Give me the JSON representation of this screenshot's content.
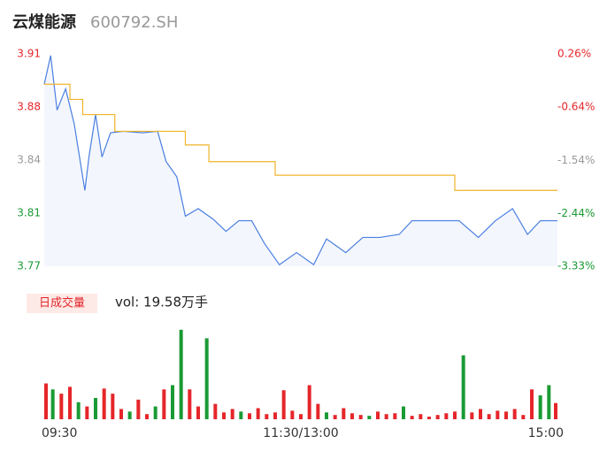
{
  "header": {
    "name": "云煤能源",
    "code": "600792.SH"
  },
  "chart_data": [
    {
      "type": "line",
      "xlim": [
        0,
        240
      ],
      "xticks": [
        {
          "value": 0,
          "label": "09:30"
        },
        {
          "value": 120,
          "label": "11:30/13:00"
        },
        {
          "value": 240,
          "label": "15:00"
        }
      ],
      "ylim": [
        3.77,
        3.91
      ],
      "yticks": [
        3.77,
        {
          "value": 3.805,
          "label": "3.81"
        },
        3.84,
        {
          "value": 3.875,
          "label": "3.88"
        },
        3.91
      ],
      "ytick_colors": [
        "#1a9a35",
        "#1a9a35",
        "#999999",
        "#e5262a",
        "#e5262a"
      ],
      "y2lim": [
        -3.33,
        0.26
      ],
      "y2ticks": [
        {
          "value": -3.33,
          "label": "-3.33%"
        },
        {
          "value": -2.44,
          "label": "-2.44%"
        },
        {
          "value": -1.54,
          "label": "-1.54%"
        },
        {
          "value": -0.64,
          "label": "-0.64%"
        },
        {
          "value": 0.26,
          "label": "0.26%"
        }
      ],
      "series": [
        {
          "color": "#4a7fe0",
          "x": [
            0,
            3,
            6,
            10,
            14,
            19,
            21,
            24,
            27,
            31,
            37,
            46,
            53,
            57,
            62,
            66,
            72,
            79,
            85,
            91,
            97,
            103,
            110,
            118,
            126,
            132,
            141,
            149,
            157,
            166,
            172,
            182,
            194,
            203,
            211,
            219,
            226,
            232,
            240
          ],
          "values": [
            3.89,
            3.909,
            3.873,
            3.887,
            3.864,
            3.82,
            3.843,
            3.87,
            3.842,
            3.858,
            3.859,
            3.858,
            3.859,
            3.839,
            3.829,
            3.803,
            3.808,
            3.801,
            3.793,
            3.8,
            3.8,
            3.785,
            3.771,
            3.779,
            3.771,
            3.788,
            3.779,
            3.789,
            3.789,
            3.791,
            3.8,
            3.8,
            3.8,
            3.789,
            3.8,
            3.808,
            3.791,
            3.8,
            3.8
          ]
        },
        {
          "color": "#f0b429",
          "x": [
            0,
            12,
            12,
            18,
            18,
            33,
            33,
            66,
            66,
            77,
            77,
            108,
            108,
            192,
            192,
            240
          ],
          "values": [
            3.89,
            3.89,
            3.88,
            3.88,
            3.87,
            3.87,
            3.859,
            3.859,
            3.85,
            3.85,
            3.839,
            3.839,
            3.83,
            3.83,
            3.82,
            3.82
          ]
        }
      ]
    },
    {
      "type": "bar",
      "legend": "日成交量",
      "subtitle": "vol: 19.58万手",
      "xlim": [
        0,
        240
      ],
      "ylim": [
        0,
        11000
      ],
      "x": [
        0,
        4,
        8,
        12,
        16,
        20,
        24,
        28,
        32,
        36,
        40,
        44,
        48,
        52,
        56,
        60,
        64,
        68,
        72,
        76,
        80,
        84,
        88,
        92,
        96,
        100,
        104,
        108,
        112,
        116,
        120,
        124,
        128,
        132,
        136,
        140,
        144,
        148,
        152,
        156,
        160,
        164,
        168,
        172,
        176,
        180,
        184,
        188,
        192,
        196,
        200,
        204,
        208,
        212,
        216,
        220,
        224,
        228,
        232,
        236,
        240
      ],
      "values": [
        4200,
        3500,
        3000,
        3800,
        2000,
        1500,
        2500,
        3600,
        3000,
        1200,
        900,
        2300,
        600,
        1500,
        3500,
        4000,
        10500,
        3500,
        1500,
        9500,
        1800,
        800,
        1200,
        900,
        700,
        1300,
        600,
        800,
        3400,
        1000,
        600,
        4000,
        1800,
        800,
        500,
        1300,
        700,
        500,
        400,
        900,
        600,
        700,
        1500,
        400,
        600,
        300,
        500,
        700,
        900,
        7500,
        800,
        1200,
        600,
        1000,
        900,
        1200,
        500,
        3500,
        2800,
        4000,
        1900
      ],
      "colors": [
        "#e5262a",
        "#1a9a35",
        "#e5262a",
        "#e5262a",
        "#1a9a35",
        "#e5262a",
        "#1a9a35",
        "#e5262a",
        "#e5262a",
        "#e5262a",
        "#1a9a35",
        "#e5262a",
        "#e5262a",
        "#1a9a35",
        "#e5262a",
        "#1a9a35",
        "#1a9a35",
        "#e5262a",
        "#e5262a",
        "#1a9a35",
        "#e5262a",
        "#e5262a",
        "#e5262a",
        "#1a9a35",
        "#e5262a",
        "#e5262a",
        "#e5262a",
        "#e5262a",
        "#e5262a",
        "#e5262a",
        "#e5262a",
        "#e5262a",
        "#e5262a",
        "#1a9a35",
        "#e5262a",
        "#e5262a",
        "#e5262a",
        "#e5262a",
        "#1a9a35",
        "#e5262a",
        "#e5262a",
        "#e5262a",
        "#1a9a35",
        "#e5262a",
        "#e5262a",
        "#e5262a",
        "#e5262a",
        "#e5262a",
        "#e5262a",
        "#1a9a35",
        "#e5262a",
        "#e5262a",
        "#e5262a",
        "#e5262a",
        "#e5262a",
        "#e5262a",
        "#e5262a",
        "#e5262a",
        "#1a9a35",
        "#1a9a35",
        "#e5262a"
      ]
    }
  ]
}
